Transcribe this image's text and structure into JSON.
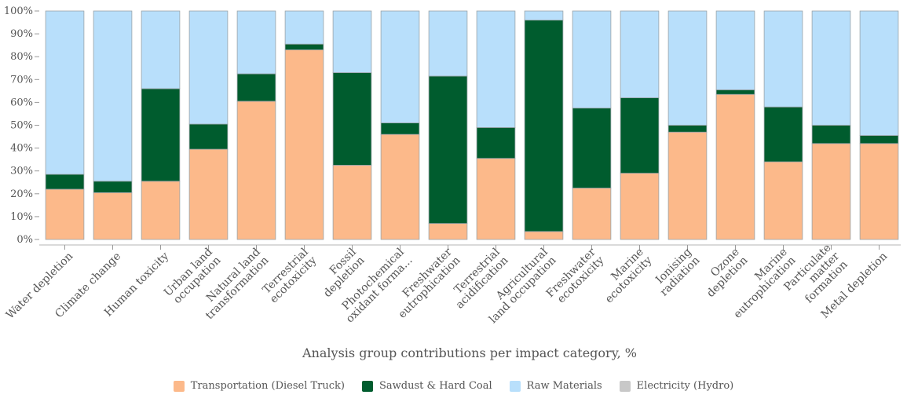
{
  "chart_data": {
    "type": "bar",
    "stacked": true,
    "xlabel": "Analysis group contributions per impact category, %",
    "ylabel": "",
    "ylim": [
      0,
      100
    ],
    "yticks": [
      "0%",
      "10%",
      "20%",
      "30%",
      "40%",
      "50%",
      "60%",
      "70%",
      "80%",
      "90%",
      "100%"
    ],
    "grid": false,
    "legend_position": "bottom",
    "categories": [
      "Water depletion",
      "Climate change",
      "Human toxicity",
      "Urban land occupation",
      "Natural land transformation",
      "Terrestrial ecotoxicity",
      "Fossil depletion",
      "Photochemical oxidant forma...",
      "Freshwater eutrophication",
      "Terrestrial acidification",
      "Agricultural land occupation",
      "Freshwater ecotoxicity",
      "Marine ecotoxicity",
      "Ionising radiation",
      "Ozone depletion",
      "Marine eutrophication",
      "Particulate matter formation",
      "Metal depletion"
    ],
    "category_lines": [
      [
        "Water depletion"
      ],
      [
        "Climate change"
      ],
      [
        "Human toxicity"
      ],
      [
        "Urban land",
        "occupation"
      ],
      [
        "Natural land",
        "transformation"
      ],
      [
        "Terrestrial",
        "ecotoxicity"
      ],
      [
        "Fossil",
        "depletion"
      ],
      [
        "Photochemical",
        "oxidant forma..."
      ],
      [
        "Freshwater",
        "eutrophication"
      ],
      [
        "Terrestrial",
        "acidification"
      ],
      [
        "Agricultural",
        "land occupation"
      ],
      [
        "Freshwater",
        "ecotoxicity"
      ],
      [
        "Marine",
        "ecotoxicity"
      ],
      [
        "Ionising",
        "radiation"
      ],
      [
        "Ozone",
        "depletion"
      ],
      [
        "Marine",
        "eutrophication"
      ],
      [
        "Particulate",
        "matter",
        "formation"
      ],
      [
        "Metal depletion"
      ]
    ],
    "series": [
      {
        "name": "Transportation (Diesel Truck)",
        "color": "#fcb98a",
        "values": [
          22,
          20.5,
          25.5,
          39.5,
          60.5,
          83,
          32.5,
          46,
          7,
          35.5,
          3.5,
          22.5,
          29,
          47,
          63.5,
          34,
          42,
          42
        ]
      },
      {
        "name": "Sawdust & Hard Coal",
        "color": "#005c2e",
        "values": [
          6.5,
          5,
          40.5,
          11,
          12,
          2.5,
          40.5,
          5,
          64.5,
          13.5,
          92.5,
          35,
          33,
          3,
          2,
          24,
          8,
          3.5
        ]
      },
      {
        "name": "Raw Materials",
        "color": "#b8dffb",
        "values": [
          71.5,
          74.5,
          34,
          49.5,
          27.5,
          14.5,
          27,
          49,
          28.5,
          51,
          4,
          42.5,
          38,
          50,
          34.5,
          42,
          50,
          54.5
        ]
      },
      {
        "name": "Electricity (Hydro)",
        "color": "#c8c8c8",
        "values": [
          0,
          0,
          0,
          0,
          0,
          0,
          0,
          0,
          0,
          0,
          0,
          0,
          0,
          0,
          0,
          0,
          0,
          0
        ]
      }
    ]
  }
}
